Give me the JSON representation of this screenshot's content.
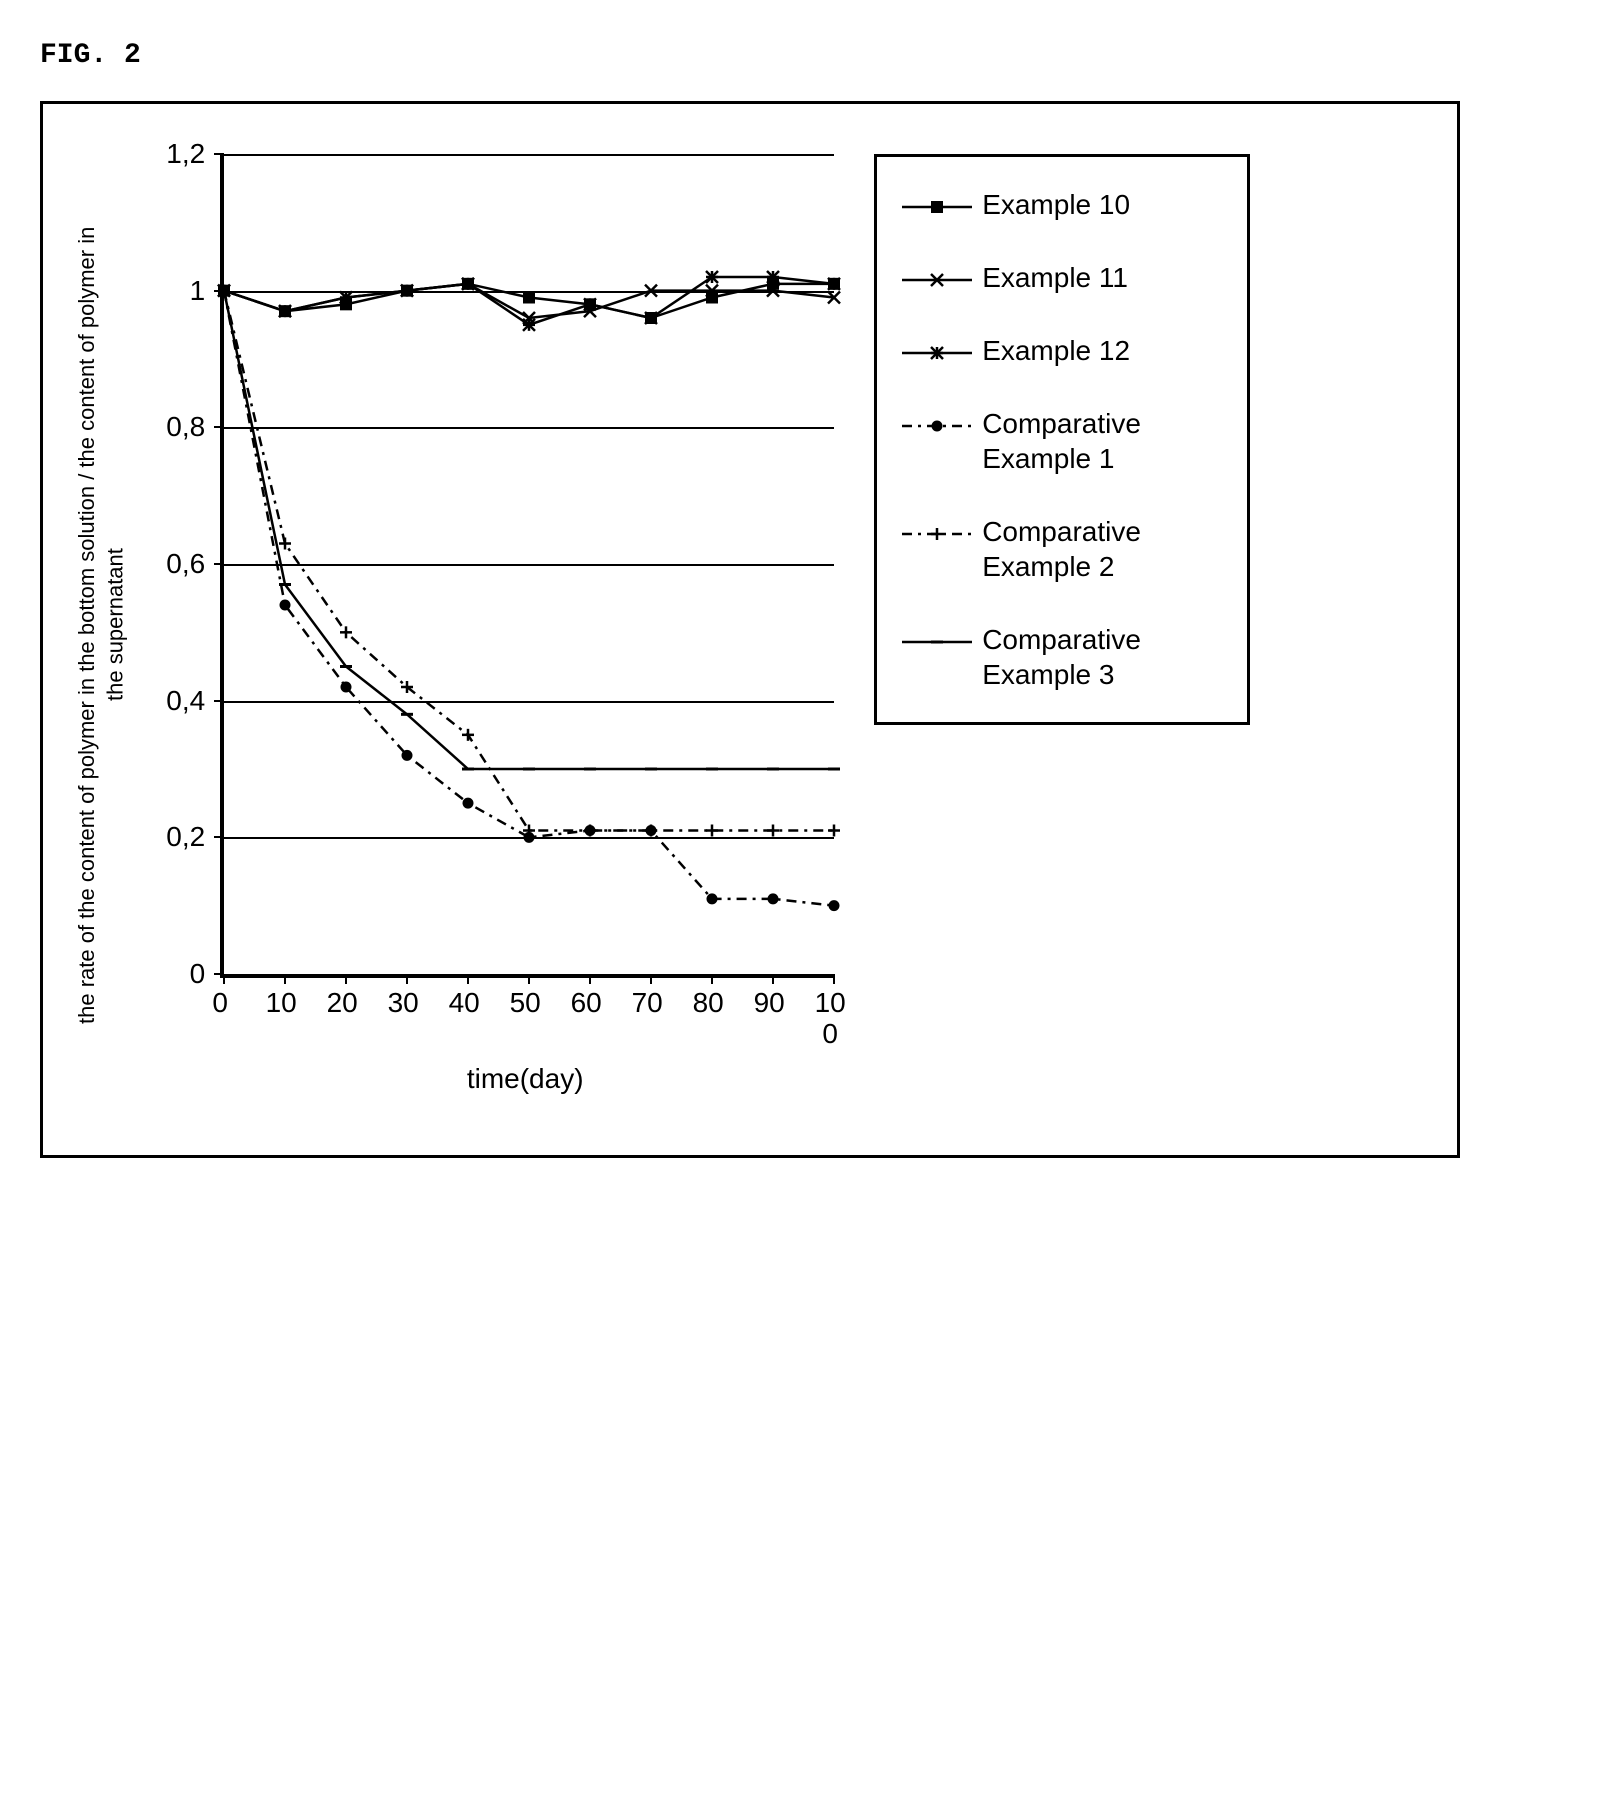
{
  "figure_label": "FIG. 2",
  "chart": {
    "type": "line",
    "xlabel": "time(day)",
    "ylabel": "the rate of the content of polymer in the bottom solution / the content of polymer in the supernatant",
    "xlim": [
      0,
      100
    ],
    "ylim": [
      0,
      1.2
    ],
    "x_ticks": [
      0,
      10,
      20,
      30,
      40,
      50,
      60,
      70,
      80,
      90,
      100
    ],
    "x_tick_labels": [
      "0",
      "10",
      "20",
      "30",
      "40",
      "50",
      "60",
      "70",
      "80",
      "90",
      "10\n0"
    ],
    "y_ticks": [
      0,
      0.2,
      0.4,
      0.6,
      0.8,
      1,
      1.2
    ],
    "y_tick_labels": [
      "0",
      "0,2",
      "0,4",
      "0,6",
      "0,8",
      "1",
      "1,2"
    ],
    "grid_color": "#000000",
    "background_color": "#ffffff",
    "axis_fontsize": 28,
    "label_fontsize": 22,
    "line_width": 2.5,
    "series": [
      {
        "name": "Example 10",
        "marker": "filled-square",
        "marker_size": 12,
        "line_style": "solid",
        "color": "#000000",
        "x": [
          0,
          10,
          20,
          30,
          40,
          50,
          60,
          70,
          80,
          90,
          100
        ],
        "y": [
          1.0,
          0.97,
          0.98,
          1.0,
          1.01,
          0.99,
          0.98,
          0.96,
          0.99,
          1.01,
          1.01
        ]
      },
      {
        "name": "Example 11",
        "marker": "x",
        "marker_size": 12,
        "line_style": "solid",
        "color": "#000000",
        "x": [
          0,
          10,
          20,
          30,
          40,
          50,
          60,
          70,
          80,
          90,
          100
        ],
        "y": [
          1.0,
          0.97,
          0.99,
          1.0,
          1.01,
          0.96,
          0.97,
          1.0,
          1.0,
          1.0,
          0.99
        ]
      },
      {
        "name": "Example 12",
        "marker": "asterisk",
        "marker_size": 12,
        "line_style": "solid",
        "color": "#000000",
        "x": [
          0,
          10,
          20,
          30,
          40,
          50,
          60,
          70,
          80,
          90,
          100
        ],
        "y": [
          1.0,
          0.97,
          0.99,
          1.0,
          1.01,
          0.95,
          0.98,
          0.96,
          1.02,
          1.02,
          1.01
        ]
      },
      {
        "name": "Comparative Example 1",
        "marker": "filled-circle",
        "marker_size": 11,
        "line_style": "dash-dot",
        "color": "#000000",
        "x": [
          0,
          10,
          20,
          30,
          40,
          50,
          60,
          70,
          80,
          90,
          100
        ],
        "y": [
          1.0,
          0.54,
          0.42,
          0.32,
          0.25,
          0.2,
          0.21,
          0.21,
          0.11,
          0.11,
          0.1
        ]
      },
      {
        "name": "Comparative Example 2",
        "marker": "plus",
        "marker_size": 12,
        "line_style": "dash-dot",
        "color": "#000000",
        "x": [
          0,
          10,
          20,
          30,
          40,
          50,
          60,
          70,
          80,
          90,
          100
        ],
        "y": [
          1.0,
          0.63,
          0.5,
          0.42,
          0.35,
          0.21,
          0.21,
          0.21,
          0.21,
          0.21,
          0.21
        ]
      },
      {
        "name": "Comparative Example 3",
        "marker": "dash",
        "marker_size": 12,
        "line_style": "solid",
        "color": "#000000",
        "x": [
          0,
          10,
          20,
          30,
          40,
          50,
          60,
          70,
          80,
          90,
          100
        ],
        "y": [
          1.0,
          0.57,
          0.45,
          0.38,
          0.3,
          0.3,
          0.3,
          0.3,
          0.3,
          0.3,
          0.3
        ]
      }
    ]
  }
}
